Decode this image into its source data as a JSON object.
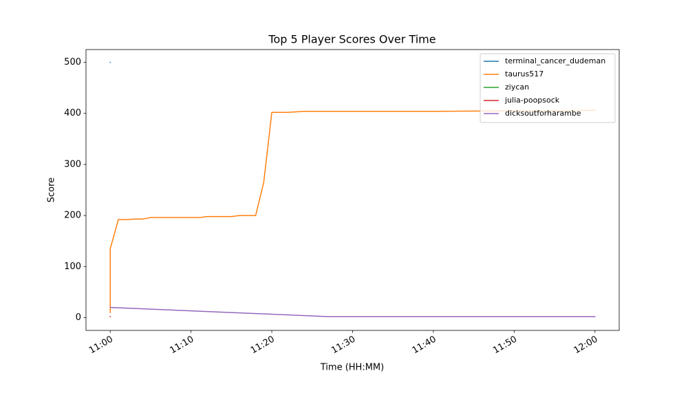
{
  "chart_data": {
    "type": "line",
    "title": "Top 5 Player Scores Over Time",
    "xlabel": "Time (HH:MM)",
    "ylabel": "Score",
    "xlim": [
      "10:57",
      "12:03"
    ],
    "xticks": [
      "11:00",
      "11:10",
      "11:20",
      "11:30",
      "11:40",
      "11:50",
      "12:00"
    ],
    "ylim": [
      -25,
      525
    ],
    "yticks": [
      0,
      100,
      200,
      300,
      400,
      500
    ],
    "legend": "upper right",
    "series": [
      {
        "name": "terminal_cancer_dudeman",
        "color": "#1f77b4",
        "x": [
          "11:00"
        ],
        "values": [
          500
        ]
      },
      {
        "name": "taurus517",
        "color": "#ff7f0e",
        "x": [
          "11:00",
          "11:00",
          "11:01",
          "11:02",
          "11:03",
          "11:04",
          "11:05",
          "11:11",
          "11:12",
          "11:15",
          "11:16",
          "11:18",
          "11:19",
          "11:20",
          "11:22",
          "11:23",
          "11:24",
          "11:40",
          "12:00"
        ],
        "values": [
          10,
          135,
          192,
          192,
          193,
          193,
          196,
          196,
          198,
          198,
          200,
          200,
          265,
          402,
          402,
          403,
          404,
          404,
          406
        ]
      },
      {
        "name": "ziycan",
        "color": "#2ca02c",
        "x": [
          "11:00"
        ],
        "values": [
          2
        ]
      },
      {
        "name": "julia-poopsock",
        "color": "#d62728",
        "x": [
          "11:00"
        ],
        "values": [
          2
        ]
      },
      {
        "name": "dicksoutforharambe",
        "color": "#9467bd",
        "x": [
          "11:00",
          "11:27",
          "12:00"
        ],
        "values": [
          20,
          2,
          2
        ]
      }
    ]
  }
}
